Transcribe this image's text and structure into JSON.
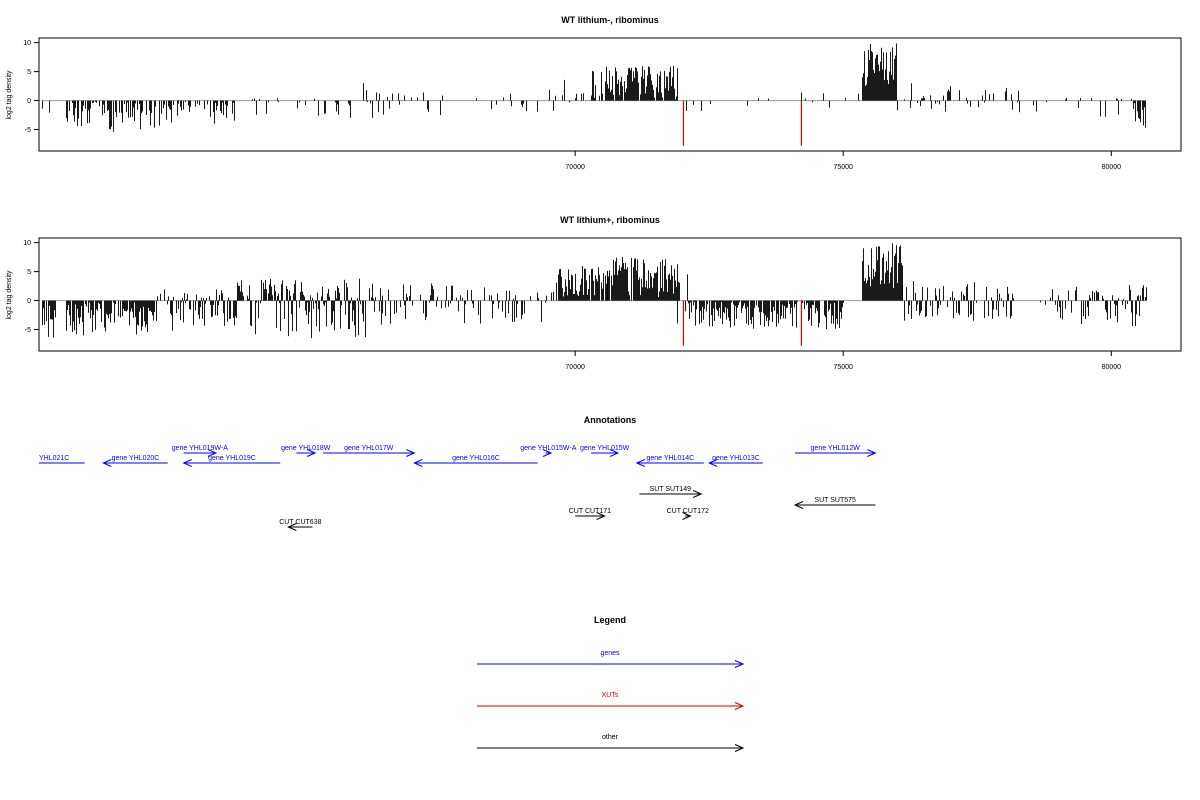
{
  "chart_data": [
    {
      "type": "bar",
      "title": "WT lithium-, ribominus",
      "ylabel": "log2 tag density",
      "xlim": [
        60000,
        81300
      ],
      "ylim": [
        -8.7,
        10.8
      ],
      "xticks": [
        70000,
        75000,
        80000
      ],
      "yticks": [
        -5,
        0,
        5,
        10
      ],
      "baseline_color": "#999999",
      "bar_color": "#000000",
      "highlight_color": "#e00000",
      "segments": [
        {
          "from": 60050,
          "to": 60200,
          "min": -3,
          "max": 0,
          "density": 0.25,
          "seed": 3
        },
        {
          "from": 60500,
          "to": 61300,
          "min": -4.5,
          "max": 0,
          "density": 0.55,
          "seed": 5
        },
        {
          "from": 61300,
          "to": 62500,
          "min": -5.5,
          "max": 0,
          "density": 0.65,
          "seed": 7
        },
        {
          "from": 62500,
          "to": 63700,
          "min": -4,
          "max": 0,
          "density": 0.45,
          "seed": 11
        },
        {
          "from": 63700,
          "to": 65000,
          "min": -2.5,
          "max": 0.5,
          "density": 0.22,
          "seed": 13
        },
        {
          "from": 65000,
          "to": 66300,
          "min": -3,
          "max": 3,
          "density": 0.22,
          "seed": 17
        },
        {
          "from": 66300,
          "to": 68200,
          "min": -2.5,
          "max": 1.5,
          "density": 0.2,
          "seed": 19
        },
        {
          "from": 68200,
          "to": 69800,
          "min": -2,
          "max": 2,
          "density": 0.12,
          "seed": 23
        },
        {
          "from": 69800,
          "to": 70300,
          "min": -1.5,
          "max": 4,
          "density": 0.25,
          "seed": 29
        },
        {
          "from": 70300,
          "to": 71900,
          "min": 0,
          "max": 6,
          "density": 0.85,
          "seed": 31
        },
        {
          "from": 71900,
          "to": 74300,
          "min": -2.5,
          "max": 1.5,
          "density": 0.1,
          "seed": 37
        },
        {
          "from": 74300,
          "to": 75300,
          "min": -2,
          "max": 1.5,
          "density": 0.15,
          "seed": 41
        },
        {
          "from": 75350,
          "to": 76000,
          "min": 2,
          "max": 10,
          "density": 1.0,
          "seed": 43
        },
        {
          "from": 76000,
          "to": 76300,
          "min": -3.5,
          "max": 3,
          "density": 0.35,
          "seed": 47
        },
        {
          "from": 76300,
          "to": 78300,
          "min": -3,
          "max": 2.5,
          "density": 0.25,
          "seed": 53
        },
        {
          "from": 78300,
          "to": 79000,
          "min": -2,
          "max": 1,
          "density": 0.1,
          "seed": 59
        },
        {
          "from": 79000,
          "to": 80400,
          "min": -3,
          "max": 0.5,
          "density": 0.25,
          "seed": 61
        },
        {
          "from": 80400,
          "to": 80650,
          "min": -5.5,
          "max": 0,
          "density": 0.7,
          "seed": 67
        }
      ],
      "highlights": [
        {
          "x": 72020,
          "y": -7.8
        },
        {
          "x": 74220,
          "y": -7.8
        }
      ]
    },
    {
      "type": "bar",
      "title": "WT lithium+, ribominus",
      "ylabel": "log2 tag density",
      "xlim": [
        60000,
        81300
      ],
      "ylim": [
        -8.7,
        10.8
      ],
      "xticks": [
        70000,
        75000,
        80000
      ],
      "yticks": [
        -5,
        0,
        5,
        10
      ],
      "baseline_color": "#999999",
      "bar_color": "#000000",
      "highlight_color": "#e00000",
      "segments": [
        {
          "from": 60050,
          "to": 60300,
          "min": -6.5,
          "max": 0,
          "density": 0.9,
          "seed": 71
        },
        {
          "from": 60500,
          "to": 62200,
          "min": -6,
          "max": 0,
          "density": 0.9,
          "seed": 73
        },
        {
          "from": 62200,
          "to": 63700,
          "min": -5.5,
          "max": 2,
          "density": 0.75,
          "seed": 79
        },
        {
          "from": 63700,
          "to": 66400,
          "min": -6.5,
          "max": 4,
          "density": 0.75,
          "seed": 83
        },
        {
          "from": 66400,
          "to": 68400,
          "min": -4,
          "max": 3,
          "density": 0.55,
          "seed": 89
        },
        {
          "from": 68400,
          "to": 69600,
          "min": -4,
          "max": 2,
          "density": 0.45,
          "seed": 97
        },
        {
          "from": 69650,
          "to": 70600,
          "min": 0,
          "max": 6,
          "density": 0.95,
          "seed": 101
        },
        {
          "from": 70600,
          "to": 71900,
          "min": 0,
          "max": 7.5,
          "density": 0.95,
          "seed": 103
        },
        {
          "from": 71900,
          "to": 72100,
          "min": -4,
          "max": 5,
          "density": 0.7,
          "seed": 107
        },
        {
          "from": 72100,
          "to": 75000,
          "min": -5,
          "max": 0,
          "density": 0.9,
          "seed": 109
        },
        {
          "from": 75350,
          "to": 76100,
          "min": 2,
          "max": 10,
          "density": 1.0,
          "seed": 113
        },
        {
          "from": 76100,
          "to": 78300,
          "min": -3.5,
          "max": 3.5,
          "density": 0.55,
          "seed": 127
        },
        {
          "from": 78300,
          "to": 78900,
          "min": -1.5,
          "max": 1,
          "density": 0.1,
          "seed": 131
        },
        {
          "from": 78900,
          "to": 80650,
          "min": -5,
          "max": 3,
          "density": 0.7,
          "seed": 137
        }
      ],
      "highlights": [
        {
          "x": 72020,
          "y": -7.8
        },
        {
          "x": 74220,
          "y": -7.8
        }
      ]
    }
  ],
  "annotations": {
    "title": "Annotations",
    "xlim": [
      60000,
      81300
    ],
    "features": [
      {
        "label": "YHL021C",
        "start": 60000,
        "end": 60850,
        "strand": "none",
        "row": 1,
        "color": "#0000ff"
      },
      {
        "label": "gene YHL020C",
        "start": 61200,
        "end": 62400,
        "strand": "-",
        "row": 1,
        "color": "#0000ff"
      },
      {
        "label": "gene YHL019W-A",
        "start": 62700,
        "end": 63300,
        "strand": "+",
        "row": 0,
        "color": "#0000ff"
      },
      {
        "label": "gene YHL019C",
        "start": 62700,
        "end": 64500,
        "strand": "-",
        "row": 1,
        "color": "#0000ff"
      },
      {
        "label": "gene YHL018W",
        "start": 64800,
        "end": 65150,
        "strand": "+",
        "row": 0,
        "color": "#0000ff"
      },
      {
        "label": "gene YHL017W",
        "start": 65300,
        "end": 67000,
        "strand": "+",
        "row": 0,
        "color": "#0000ff"
      },
      {
        "label": "gene YHL016C",
        "start": 67000,
        "end": 69300,
        "strand": "-",
        "row": 1,
        "color": "#0000ff"
      },
      {
        "label": "gene YHL015W-A",
        "start": 69450,
        "end": 69550,
        "strand": "+",
        "row": 0,
        "color": "#0000ff"
      },
      {
        "label": "gene YHL015W",
        "start": 70300,
        "end": 70800,
        "strand": "+",
        "row": 0,
        "color": "#0000ff"
      },
      {
        "label": "gene YHL014C",
        "start": 71150,
        "end": 72400,
        "strand": "-",
        "row": 1,
        "color": "#0000ff"
      },
      {
        "label": "gene YHL013C",
        "start": 72500,
        "end": 73500,
        "strand": "-",
        "row": 1,
        "color": "#0000ff"
      },
      {
        "label": "gene YHL012W",
        "start": 74100,
        "end": 75600,
        "strand": "+",
        "row": 0,
        "color": "#0000ff"
      },
      {
        "label": "SUT SUT149",
        "start": 71200,
        "end": 72350,
        "strand": "+",
        "row": 2,
        "color": "#000000"
      },
      {
        "label": "SUT SUT575",
        "start": 74100,
        "end": 75600,
        "strand": "-",
        "row": 3,
        "color": "#000000"
      },
      {
        "label": "CUT CUT171",
        "start": 70000,
        "end": 70550,
        "strand": "+",
        "row": 4,
        "color": "#000000"
      },
      {
        "label": "CUT CUT172",
        "start": 72050,
        "end": 72150,
        "strand": "+",
        "row": 4,
        "color": "#000000"
      },
      {
        "label": "CUT CUT638",
        "start": 64650,
        "end": 65100,
        "strand": "-",
        "row": 5,
        "color": "#000000"
      }
    ]
  },
  "legend": {
    "title": "Legend",
    "items": [
      {
        "label": "genes",
        "color": "#0000ff"
      },
      {
        "label": "XUTs",
        "color": "#e00000"
      },
      {
        "label": "other",
        "color": "#000000"
      }
    ]
  }
}
